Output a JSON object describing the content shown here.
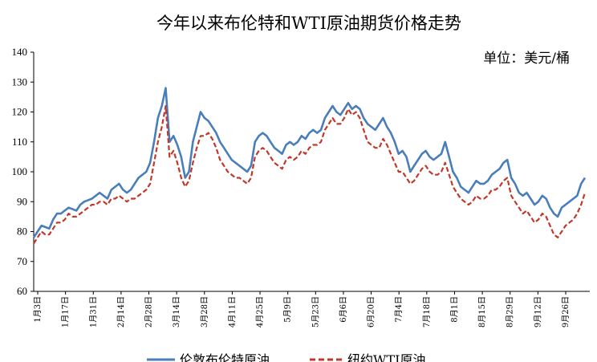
{
  "chart_data": {
    "type": "line",
    "title": "今年以来布伦特和WTI原油期货价格走势",
    "unit_label": "单位：美元/桶",
    "ylim": [
      60,
      140
    ],
    "yticks": [
      60,
      70,
      80,
      90,
      100,
      110,
      120,
      130,
      140
    ],
    "x_tick_labels": [
      "1月3日",
      "1月17日",
      "1月31日",
      "2月14日",
      "2月28日",
      "3月14日",
      "3月28日",
      "4月11日",
      "4月25日",
      "5月9日",
      "5月23日",
      "6月6日",
      "6月20日",
      "7月4日",
      "7月18日",
      "8月1日",
      "8月15日",
      "8月29日",
      "9月12日",
      "9月26日"
    ],
    "grid": false,
    "legend_position": "bottom",
    "series": [
      {
        "name": "伦敦布伦特原油",
        "color": "#4a7ebb",
        "values": [
          78,
          80,
          82,
          81.5,
          81,
          84,
          86,
          86,
          87,
          88,
          87.5,
          87,
          89,
          90,
          90.5,
          91,
          92,
          93,
          92,
          91,
          94,
          95,
          96,
          94,
          93,
          94,
          96,
          98,
          99,
          100,
          103,
          110,
          118,
          122,
          128,
          110,
          112,
          109,
          105,
          98,
          100,
          110,
          115,
          120,
          118,
          117,
          115,
          113,
          110,
          108,
          106,
          104,
          103,
          102,
          101,
          100,
          102,
          110,
          112,
          113,
          112,
          110,
          108,
          107,
          106,
          109,
          110,
          109,
          110,
          112,
          111,
          113,
          114,
          113,
          114,
          118,
          120,
          122,
          120,
          119,
          121,
          123,
          121,
          122,
          121,
          118,
          116,
          115,
          114,
          116,
          118,
          115,
          113,
          110,
          106,
          107,
          105,
          100,
          102,
          104,
          106,
          107,
          105,
          104,
          105,
          106,
          110,
          105,
          100,
          98,
          95,
          94,
          93,
          95,
          97,
          96,
          96,
          97,
          99,
          100,
          101,
          103,
          104,
          98,
          96,
          93,
          92,
          93,
          91,
          89,
          90,
          92,
          91,
          88,
          86,
          85,
          88,
          89,
          90,
          91,
          92,
          96,
          98
        ]
      },
      {
        "name": "纽约WTI原油",
        "color": "#c0392b",
        "values": [
          76,
          78,
          80,
          79,
          79,
          81,
          83,
          83,
          84,
          86,
          85,
          85,
          86,
          87,
          88,
          89,
          89,
          90,
          90,
          89,
          91,
          91,
          92,
          91,
          90,
          91,
          91,
          92,
          93,
          94,
          96,
          103,
          110,
          115,
          122,
          105,
          107,
          103,
          98,
          95,
          97,
          103,
          108,
          112,
          112,
          113,
          111,
          108,
          104,
          102,
          100,
          99,
          98,
          98,
          97,
          96,
          98,
          105,
          107,
          108,
          107,
          105,
          103,
          102,
          101,
          104,
          105,
          104,
          105,
          107,
          106,
          108,
          109,
          109,
          110,
          114,
          116,
          118,
          116,
          116,
          118,
          121,
          119,
          120,
          118,
          114,
          110,
          109,
          108,
          108,
          111,
          109,
          106,
          103,
          100,
          100,
          98,
          96,
          97,
          99,
          101,
          102,
          100,
          99,
          99,
          100,
          103,
          99,
          95,
          93,
          91,
          90,
          89,
          90,
          92,
          91,
          91,
          92,
          94,
          94,
          95,
          97,
          98,
          92,
          90,
          88,
          86,
          87,
          85,
          83,
          84,
          86,
          85,
          82,
          79,
          78,
          80,
          82,
          83,
          84,
          86,
          89,
          93
        ]
      }
    ]
  }
}
